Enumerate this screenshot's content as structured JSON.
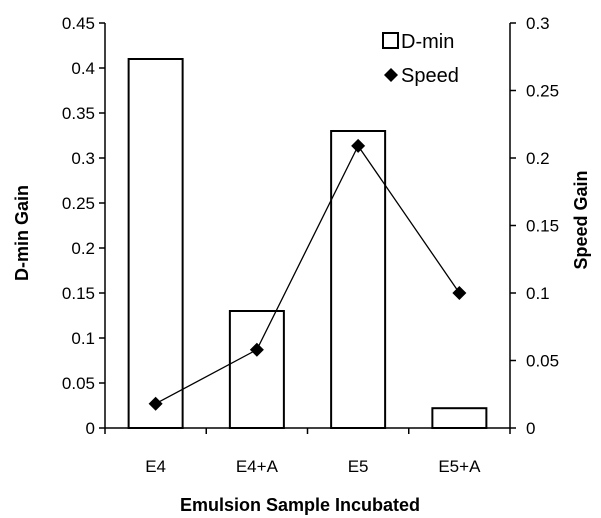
{
  "chart_data": {
    "type": "bar",
    "categories": [
      "E4",
      "E4+A",
      "E5",
      "E5+A"
    ],
    "series": [
      {
        "name": "D-min",
        "type": "bar",
        "axis": "left",
        "values": [
          0.41,
          0.13,
          0.33,
          0.022
        ]
      },
      {
        "name": "Speed",
        "type": "line",
        "axis": "right",
        "marker": "diamond",
        "values": [
          0.018,
          0.058,
          0.209,
          0.1
        ]
      }
    ],
    "xlabel": "Emulsion Sample Incubated",
    "ylabel": "D-min Gain",
    "y2label": "Speed Gain",
    "ylim": [
      0,
      0.45
    ],
    "y2lim": [
      0,
      0.3
    ],
    "yticks": [
      "0",
      "0.05",
      "0.1",
      "0.15",
      "0.2",
      "0.25",
      "0.3",
      "0.35",
      "0.4",
      "0.45"
    ],
    "y2ticks": [
      "0",
      "0.05",
      "0.1",
      "0.15",
      "0.2",
      "0.25",
      "0.3"
    ],
    "legend": "top-right",
    "grid": false
  }
}
